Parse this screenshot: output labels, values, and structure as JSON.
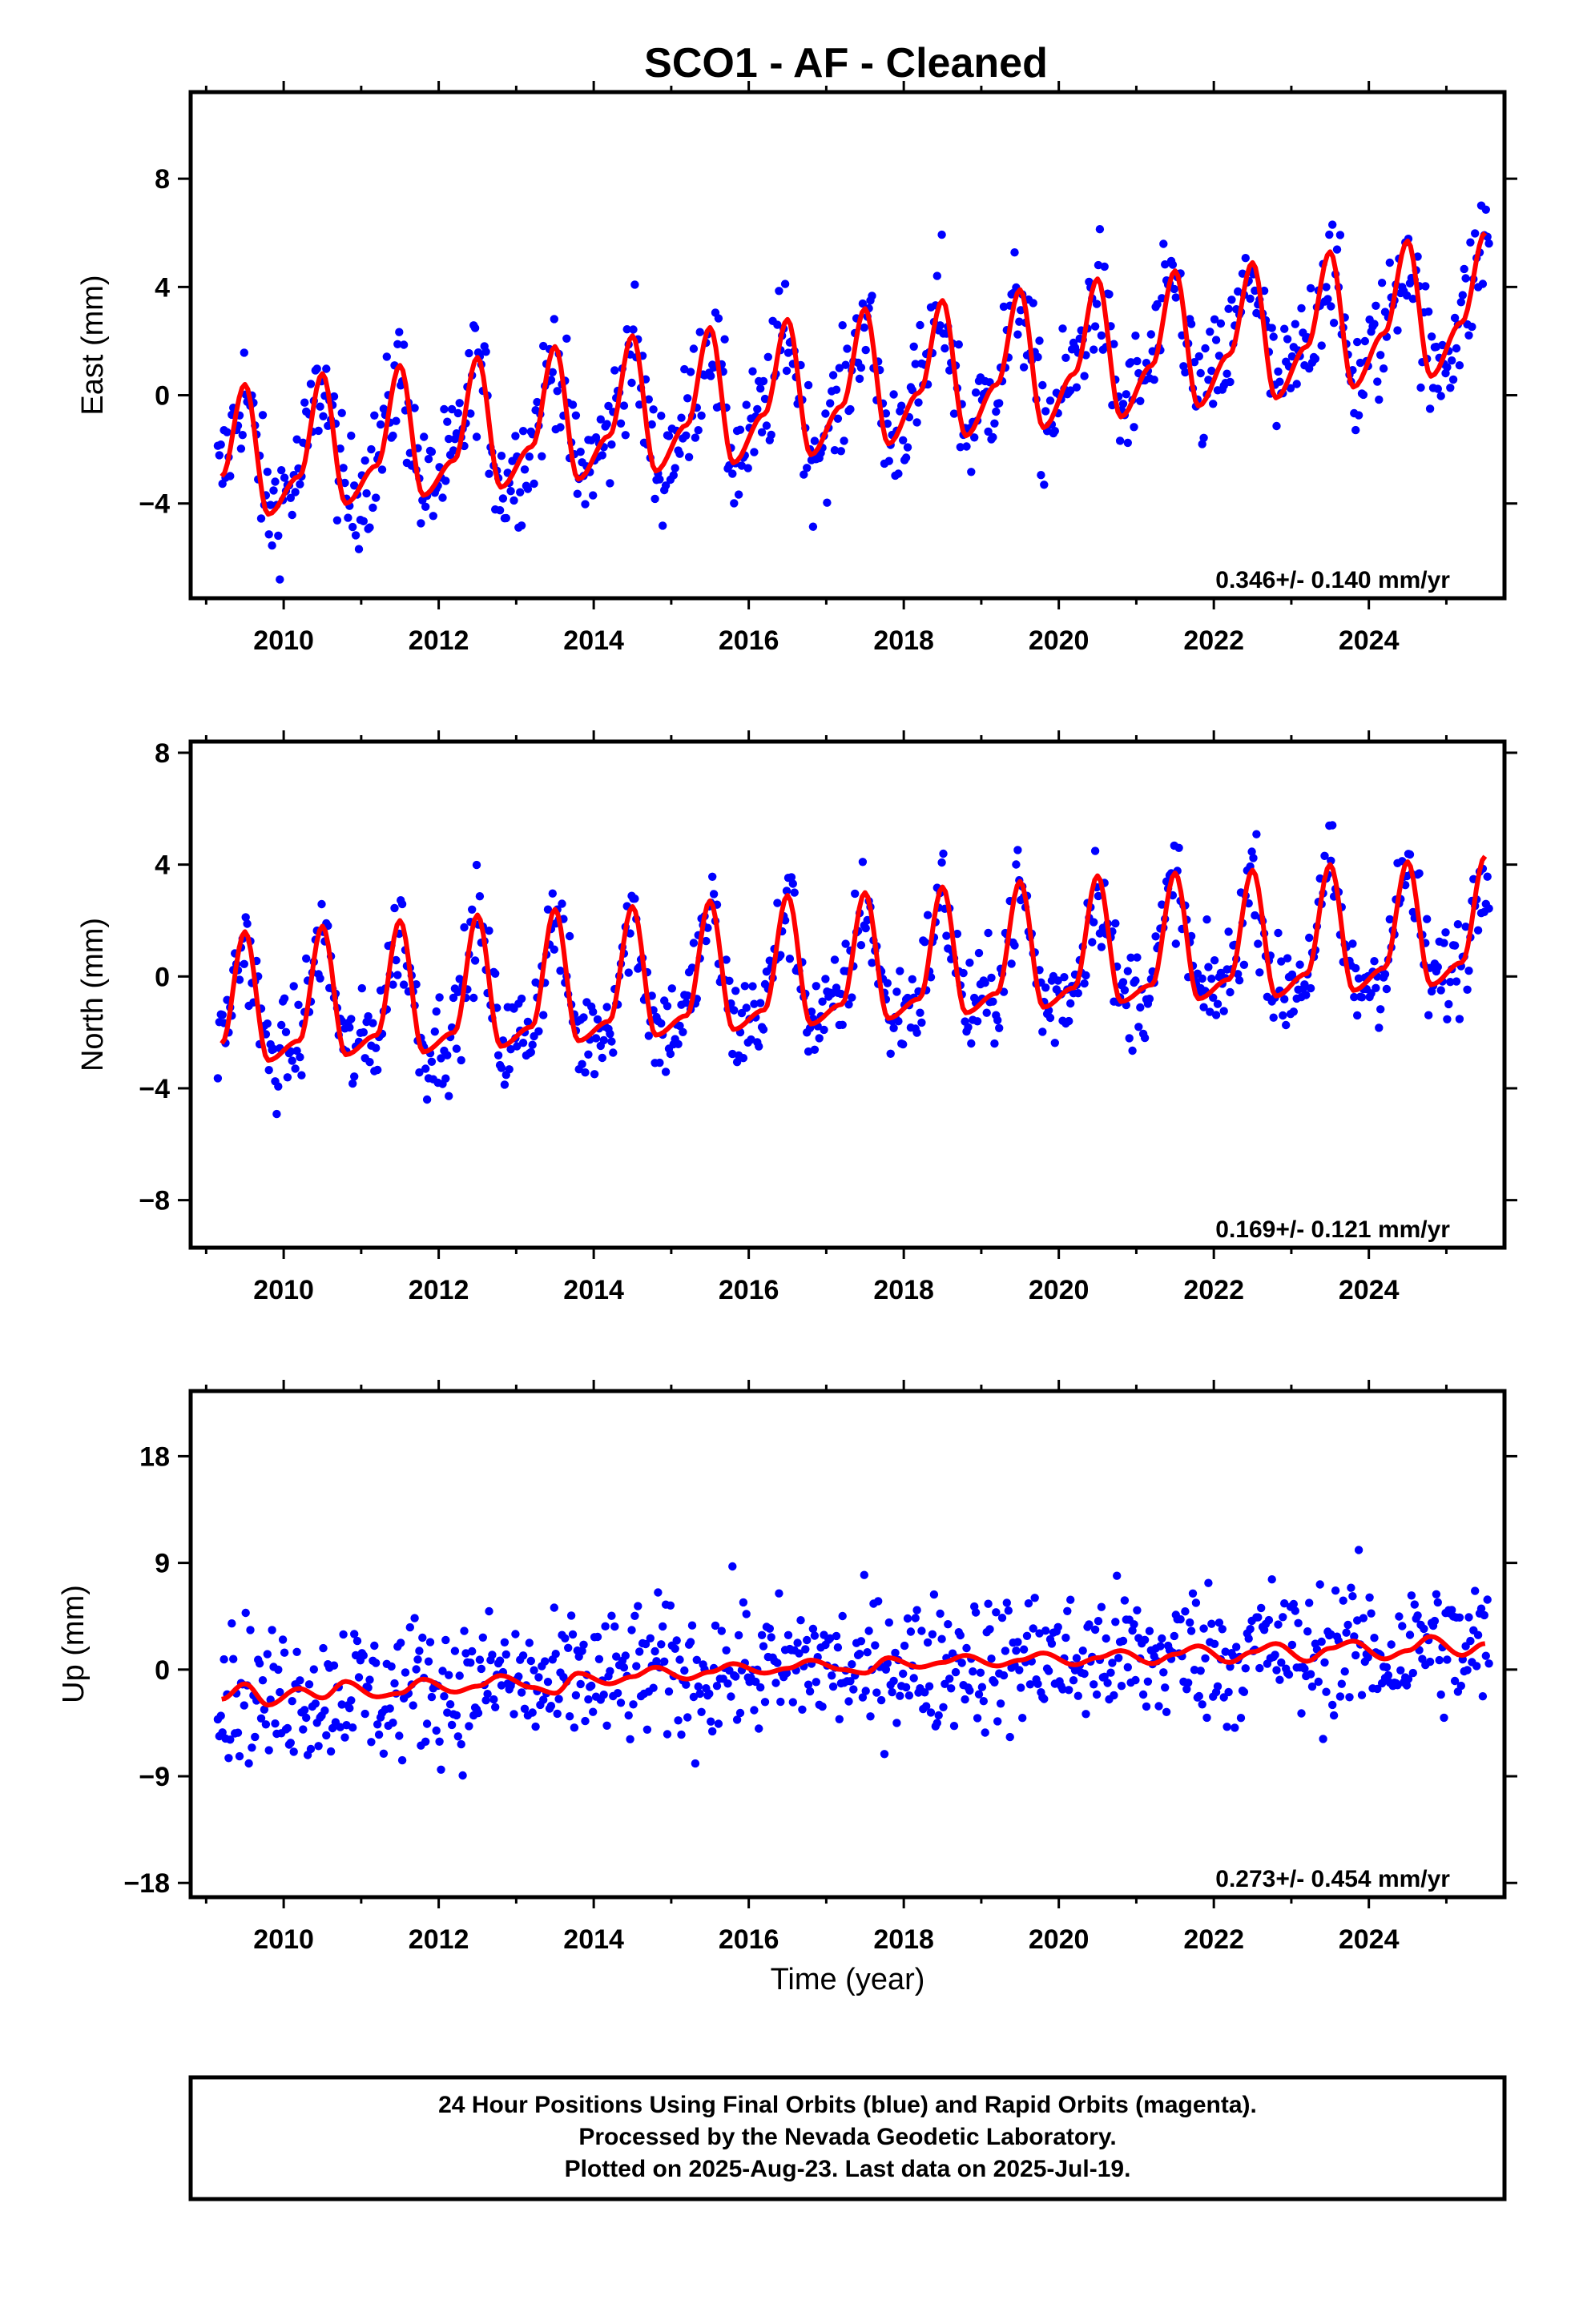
{
  "title": "SCO1  - AF - Cleaned",
  "xlabel": "Time (year)",
  "footer": {
    "line1": "24 Hour Positions Using Final Orbits (blue) and Rapid Orbits (magenta).",
    "line2": "Processed by the Nevada Geodetic Laboratory.",
    "line3": "Plotted on 2025-Aug-23. Last data on 2025-Jul-19."
  },
  "colors": {
    "data": "#0000ff",
    "model": "#ff0000",
    "frame": "#000000"
  },
  "chart_data": [
    {
      "type": "scatter",
      "ylabel": "East (mm)",
      "rate_text": "0.346+/- 0.140 mm/yr",
      "xlim": [
        2008.8,
        2025.75
      ],
      "ylim": [
        -7.5,
        11.2
      ],
      "xticks": [
        2010,
        2012,
        2014,
        2016,
        2018,
        2020,
        2022,
        2024
      ],
      "yticks": [
        -4,
        0,
        4,
        8
      ],
      "grid": false,
      "model": {
        "x": [
          2009.2,
          2009.5,
          2009.8,
          2010.2,
          2010.5,
          2010.8,
          2011.2,
          2011.5,
          2011.8,
          2012.2,
          2012.5,
          2012.8,
          2013.2,
          2013.5,
          2013.8,
          2014.2,
          2014.5,
          2014.8,
          2015.2,
          2015.5,
          2015.8,
          2016.2,
          2016.5,
          2016.8,
          2017.2,
          2017.5,
          2017.8,
          2018.2,
          2018.5,
          2018.8,
          2019.2,
          2019.5,
          2019.8,
          2020.2,
          2020.5,
          2020.8,
          2021.2,
          2021.5,
          2021.8,
          2022.2,
          2022.5,
          2022.8,
          2023.2,
          2023.5,
          2023.8,
          2024.2,
          2024.5,
          2024.8,
          2025.2,
          2025.5
        ],
        "y": [
          -3.0,
          0.4,
          -4.4,
          -3.0,
          0.8,
          -4.0,
          -2.6,
          1.1,
          -3.7,
          -2.4,
          1.4,
          -3.4,
          -1.9,
          1.8,
          -3.1,
          -1.5,
          2.2,
          -2.8,
          -1.1,
          2.5,
          -2.5,
          -0.7,
          2.8,
          -2.2,
          -0.4,
          3.2,
          -1.8,
          0.1,
          3.5,
          -1.5,
          0.4,
          3.9,
          -1.2,
          0.8,
          4.3,
          -0.8,
          1.1,
          4.6,
          -0.4,
          1.5,
          4.9,
          -0.1,
          1.8,
          5.3,
          0.3,
          2.3,
          5.7,
          0.7,
          2.7,
          6.0
        ]
      }
    },
    {
      "type": "scatter",
      "ylabel": "North (mm)",
      "rate_text": "0.169+/- 0.121 mm/yr",
      "xlim": [
        2008.8,
        2025.75
      ],
      "ylim": [
        -9.7,
        8.4
      ],
      "xticks": [
        2010,
        2012,
        2014,
        2016,
        2018,
        2020,
        2022,
        2024
      ],
      "yticks": [
        -8,
        -4,
        0,
        4,
        8
      ],
      "grid": false,
      "model": {
        "x": [
          2009.2,
          2009.5,
          2009.8,
          2010.2,
          2010.5,
          2010.8,
          2011.2,
          2011.5,
          2011.8,
          2012.2,
          2012.5,
          2012.8,
          2013.2,
          2013.5,
          2013.8,
          2014.2,
          2014.5,
          2014.8,
          2015.2,
          2015.5,
          2015.8,
          2016.2,
          2016.5,
          2016.8,
          2017.2,
          2017.5,
          2017.8,
          2018.2,
          2018.5,
          2018.8,
          2019.2,
          2019.5,
          2019.8,
          2020.2,
          2020.5,
          2020.8,
          2021.2,
          2021.5,
          2021.8,
          2022.2,
          2022.5,
          2022.8,
          2023.2,
          2023.5,
          2023.8,
          2024.2,
          2024.5,
          2024.8,
          2025.2,
          2025.5
        ],
        "y": [
          -2.4,
          1.6,
          -3.0,
          -2.3,
          1.8,
          -2.8,
          -2.1,
          2.0,
          -2.7,
          -2.0,
          2.2,
          -2.5,
          -1.8,
          2.4,
          -2.3,
          -1.6,
          2.5,
          -2.1,
          -1.4,
          2.7,
          -1.9,
          -1.2,
          2.9,
          -1.7,
          -1.0,
          3.0,
          -1.5,
          -0.8,
          3.2,
          -1.3,
          -0.6,
          3.4,
          -1.1,
          -0.4,
          3.6,
          -0.9,
          -0.3,
          3.7,
          -0.8,
          -0.1,
          3.8,
          -0.7,
          0.1,
          4.0,
          -0.5,
          0.3,
          4.1,
          -0.3,
          0.5,
          4.3
        ]
      }
    },
    {
      "type": "scatter",
      "ylabel": "Up (mm)",
      "rate_text": "0.273+/- 0.454 mm/yr",
      "xlim": [
        2008.8,
        2025.75
      ],
      "ylim": [
        -19.2,
        23.5
      ],
      "xticks": [
        2010,
        2012,
        2014,
        2016,
        2018,
        2020,
        2022,
        2024
      ],
      "yticks": [
        -18,
        -9,
        0,
        9,
        18
      ],
      "grid": false,
      "model": {
        "x": [
          2009.2,
          2009.5,
          2009.8,
          2010.2,
          2010.5,
          2010.8,
          2011.2,
          2011.5,
          2011.8,
          2012.2,
          2012.5,
          2012.8,
          2013.2,
          2013.5,
          2013.8,
          2014.2,
          2014.5,
          2014.8,
          2015.2,
          2015.5,
          2015.8,
          2016.2,
          2016.5,
          2016.8,
          2017.2,
          2017.5,
          2017.8,
          2018.2,
          2018.5,
          2018.8,
          2019.2,
          2019.5,
          2019.8,
          2020.2,
          2020.5,
          2020.8,
          2021.2,
          2021.5,
          2021.8,
          2022.2,
          2022.5,
          2022.8,
          2023.2,
          2023.5,
          2023.8,
          2024.2,
          2024.5,
          2024.8,
          2025.2,
          2025.5
        ],
        "y": [
          -2.5,
          -1.2,
          -3.0,
          -1.6,
          -2.4,
          -1.0,
          -2.3,
          -2.0,
          -0.8,
          -1.9,
          -1.4,
          -0.5,
          -1.5,
          -2.0,
          -0.3,
          -1.2,
          -0.6,
          0.2,
          -0.8,
          -0.2,
          0.5,
          -0.3,
          0.1,
          0.8,
          0.0,
          -0.3,
          1.0,
          0.2,
          0.6,
          1.2,
          0.3,
          0.8,
          1.4,
          0.4,
          1.0,
          1.6,
          0.5,
          1.3,
          2.0,
          0.6,
          1.5,
          2.2,
          0.7,
          1.8,
          2.4,
          0.9,
          1.6,
          2.8,
          1.2,
          2.2
        ]
      }
    }
  ]
}
